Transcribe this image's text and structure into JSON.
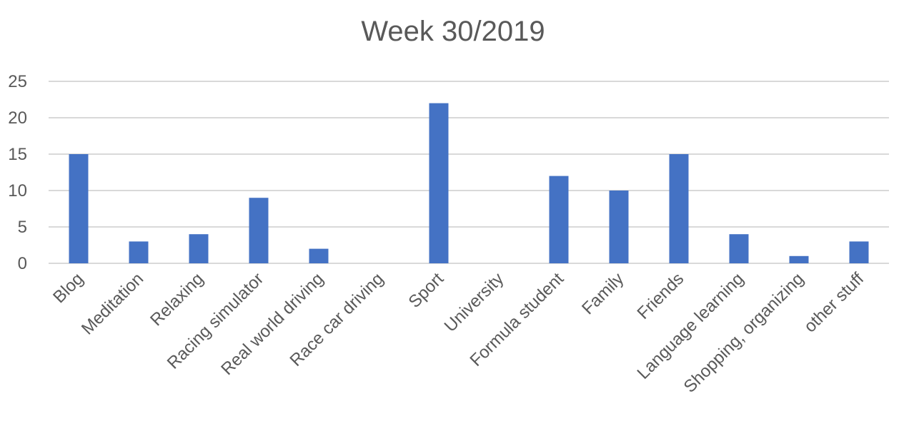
{
  "chart_data": {
    "type": "bar",
    "title": "Week 30/2019",
    "xlabel": "",
    "ylabel": "",
    "ylim": [
      0,
      25
    ],
    "yticks": [
      0,
      5,
      10,
      15,
      20,
      25
    ],
    "grid": true,
    "legend": "none",
    "bar_color": "#4472C4",
    "categories": [
      "Blog",
      "Meditation",
      "Relaxing",
      "Racing simulator",
      "Real world driving",
      "Race car driving",
      "Sport",
      "University",
      "Formula student",
      "Family",
      "Friends",
      "Language learning",
      "Shopping, organizing",
      "other stuff"
    ],
    "values": [
      15,
      3,
      4,
      9,
      2,
      0,
      22,
      0,
      12,
      10,
      15,
      4,
      1,
      3
    ]
  }
}
